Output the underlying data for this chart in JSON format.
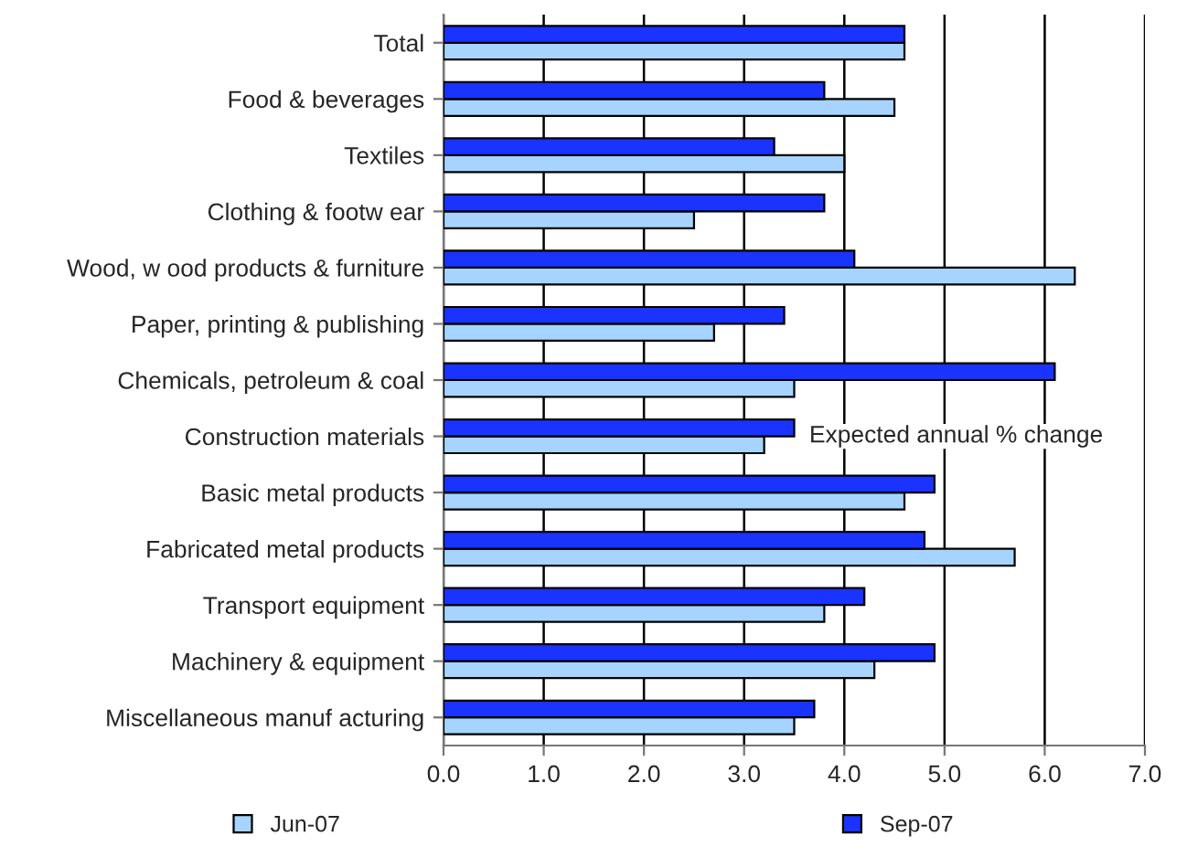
{
  "chart_data": {
    "type": "bar",
    "orientation": "horizontal",
    "categories": [
      "Total",
      "Food & beverages",
      "Textiles",
      "Clothing & footw ear",
      "Wood, w ood products & furniture",
      "Paper, printing & publishing",
      "Chemicals, petroleum & coal",
      "Construction materials",
      "Basic metal products",
      "Fabricated metal products",
      "Transport equipment",
      "Machinery & equipment",
      "Miscellaneous manuf acturing"
    ],
    "series": [
      {
        "name": "Jun-07",
        "color": "#a6d4ff",
        "values": [
          4.6,
          4.5,
          4.0,
          2.5,
          6.3,
          2.7,
          3.5,
          3.2,
          4.6,
          5.7,
          3.8,
          4.3,
          3.5
        ]
      },
      {
        "name": "Sep-07",
        "color": "#1a33ff",
        "values": [
          4.6,
          3.8,
          3.3,
          3.8,
          4.1,
          3.4,
          6.1,
          3.5,
          4.9,
          4.8,
          4.2,
          4.9,
          3.7
        ]
      }
    ],
    "xlim": [
      0,
      7
    ],
    "xticks": [
      {
        "value": 0,
        "label": "0.0"
      },
      {
        "value": 1,
        "label": "1.0"
      },
      {
        "value": 2,
        "label": "2.0"
      },
      {
        "value": 3,
        "label": "3.0"
      },
      {
        "value": 4,
        "label": "4.0"
      },
      {
        "value": 5,
        "label": "5.0"
      },
      {
        "value": 6,
        "label": "6.0"
      },
      {
        "value": 7,
        "label": "7.0"
      }
    ],
    "grid": "x",
    "legend": "bottom",
    "annotations": [
      "Expected annual % change"
    ]
  }
}
